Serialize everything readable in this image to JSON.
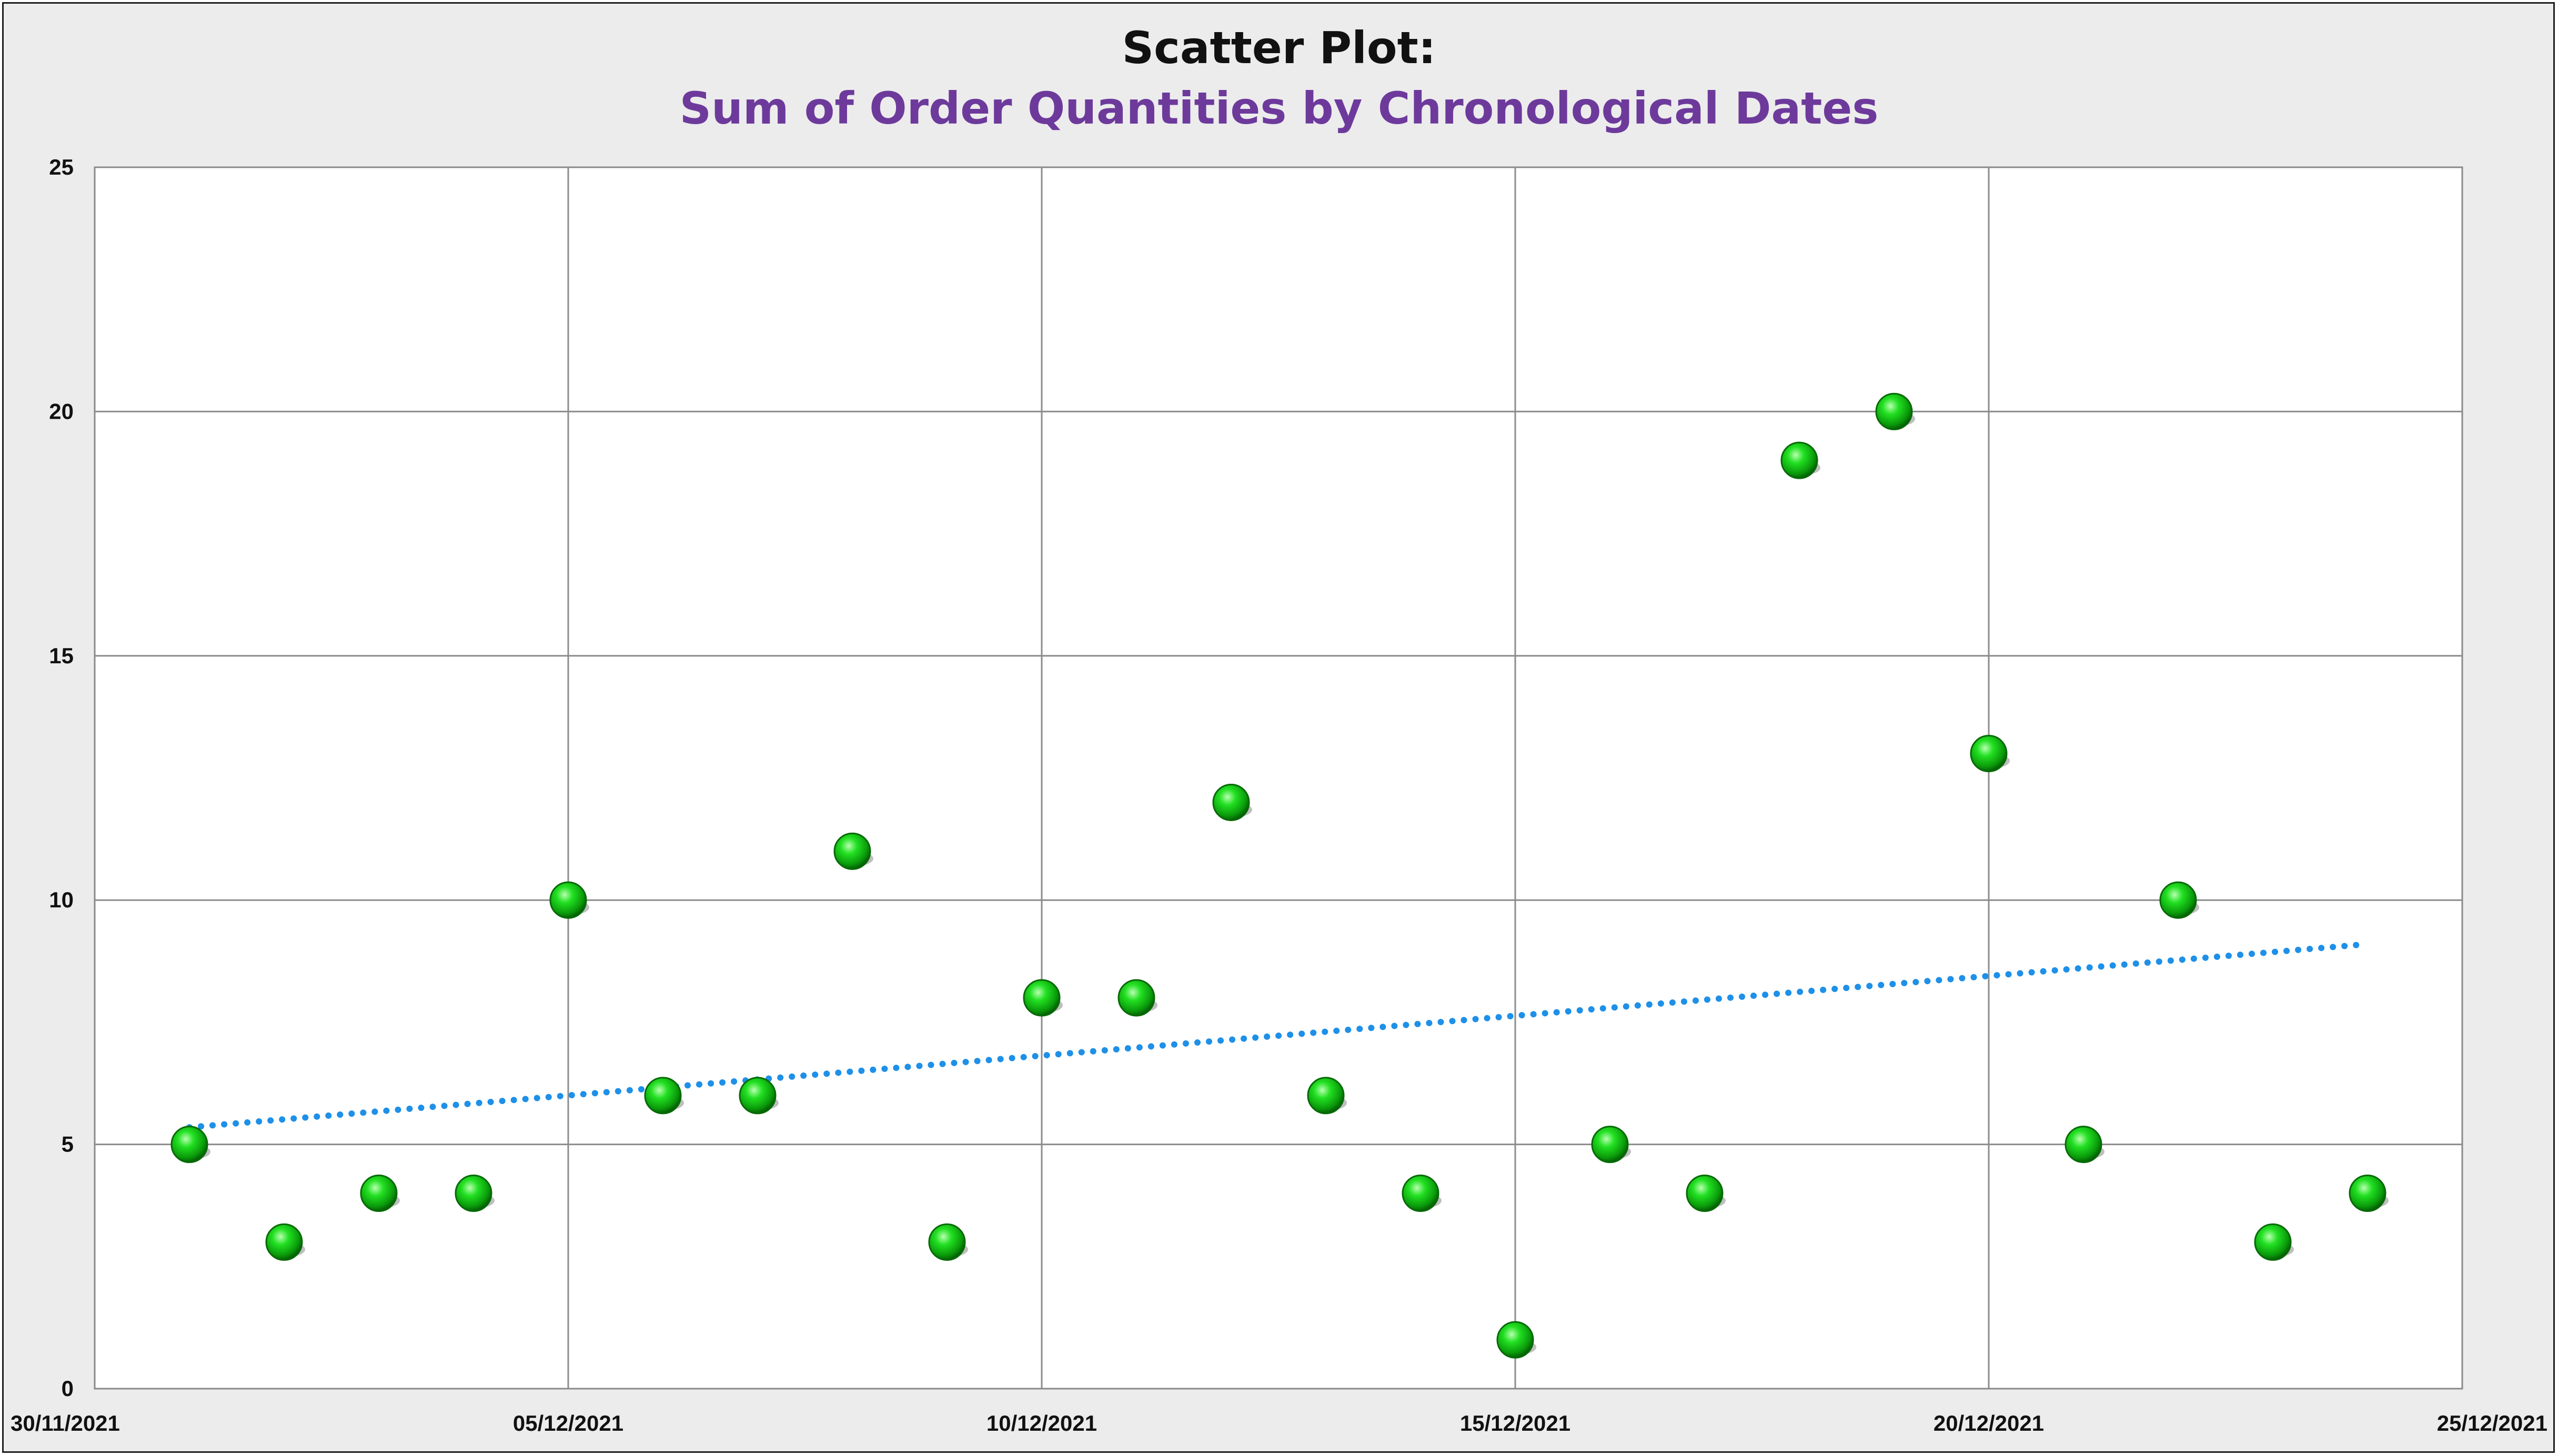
{
  "chart_data": {
    "type": "scatter",
    "title": "Scatter Plot:",
    "subtitle": "Sum of Order Quantities by Chronological Dates",
    "xlabel": "",
    "ylabel": "",
    "x_axis_type": "date",
    "xlim": [
      "2021-11-30",
      "2021-12-25"
    ],
    "ylim": [
      0,
      25
    ],
    "x_tick_labels": [
      "30/11/2021",
      "05/12/2021",
      "10/12/2021",
      "15/12/2021",
      "20/12/2021",
      "25/12/2021"
    ],
    "x_ticks": [
      "2021-11-30",
      "2021-12-05",
      "2021-12-10",
      "2021-12-15",
      "2021-12-20",
      "2021-12-25"
    ],
    "y_tick_labels": [
      "0",
      "5",
      "10",
      "15",
      "20",
      "25"
    ],
    "y_ticks": [
      0,
      5,
      10,
      15,
      20,
      25
    ],
    "grid": true,
    "legend": "none",
    "marker_color": "#10c010",
    "trendline": {
      "type": "linear",
      "style": "dotted",
      "color": "#1e90e8",
      "points": [
        {
          "x": "2021-12-01",
          "y": 5.35
        },
        {
          "x": "2021-12-24",
          "y": 9.1
        }
      ]
    },
    "points": [
      {
        "x": "2021-12-01",
        "y": 5
      },
      {
        "x": "2021-12-02",
        "y": 3
      },
      {
        "x": "2021-12-03",
        "y": 4
      },
      {
        "x": "2021-12-04",
        "y": 4
      },
      {
        "x": "2021-12-05",
        "y": 10
      },
      {
        "x": "2021-12-06",
        "y": 6
      },
      {
        "x": "2021-12-07",
        "y": 6
      },
      {
        "x": "2021-12-08",
        "y": 11
      },
      {
        "x": "2021-12-09",
        "y": 3
      },
      {
        "x": "2021-12-10",
        "y": 8
      },
      {
        "x": "2021-12-11",
        "y": 8
      },
      {
        "x": "2021-12-12",
        "y": 12
      },
      {
        "x": "2021-12-13",
        "y": 6
      },
      {
        "x": "2021-12-14",
        "y": 4
      },
      {
        "x": "2021-12-15",
        "y": 1
      },
      {
        "x": "2021-12-16",
        "y": 5
      },
      {
        "x": "2021-12-17",
        "y": 4
      },
      {
        "x": "2021-12-18",
        "y": 19
      },
      {
        "x": "2021-12-19",
        "y": 20
      },
      {
        "x": "2021-12-20",
        "y": 13
      },
      {
        "x": "2021-12-21",
        "y": 5
      },
      {
        "x": "2021-12-22",
        "y": 10
      },
      {
        "x": "2021-12-23",
        "y": 3
      },
      {
        "x": "2021-12-24",
        "y": 4
      }
    ]
  }
}
